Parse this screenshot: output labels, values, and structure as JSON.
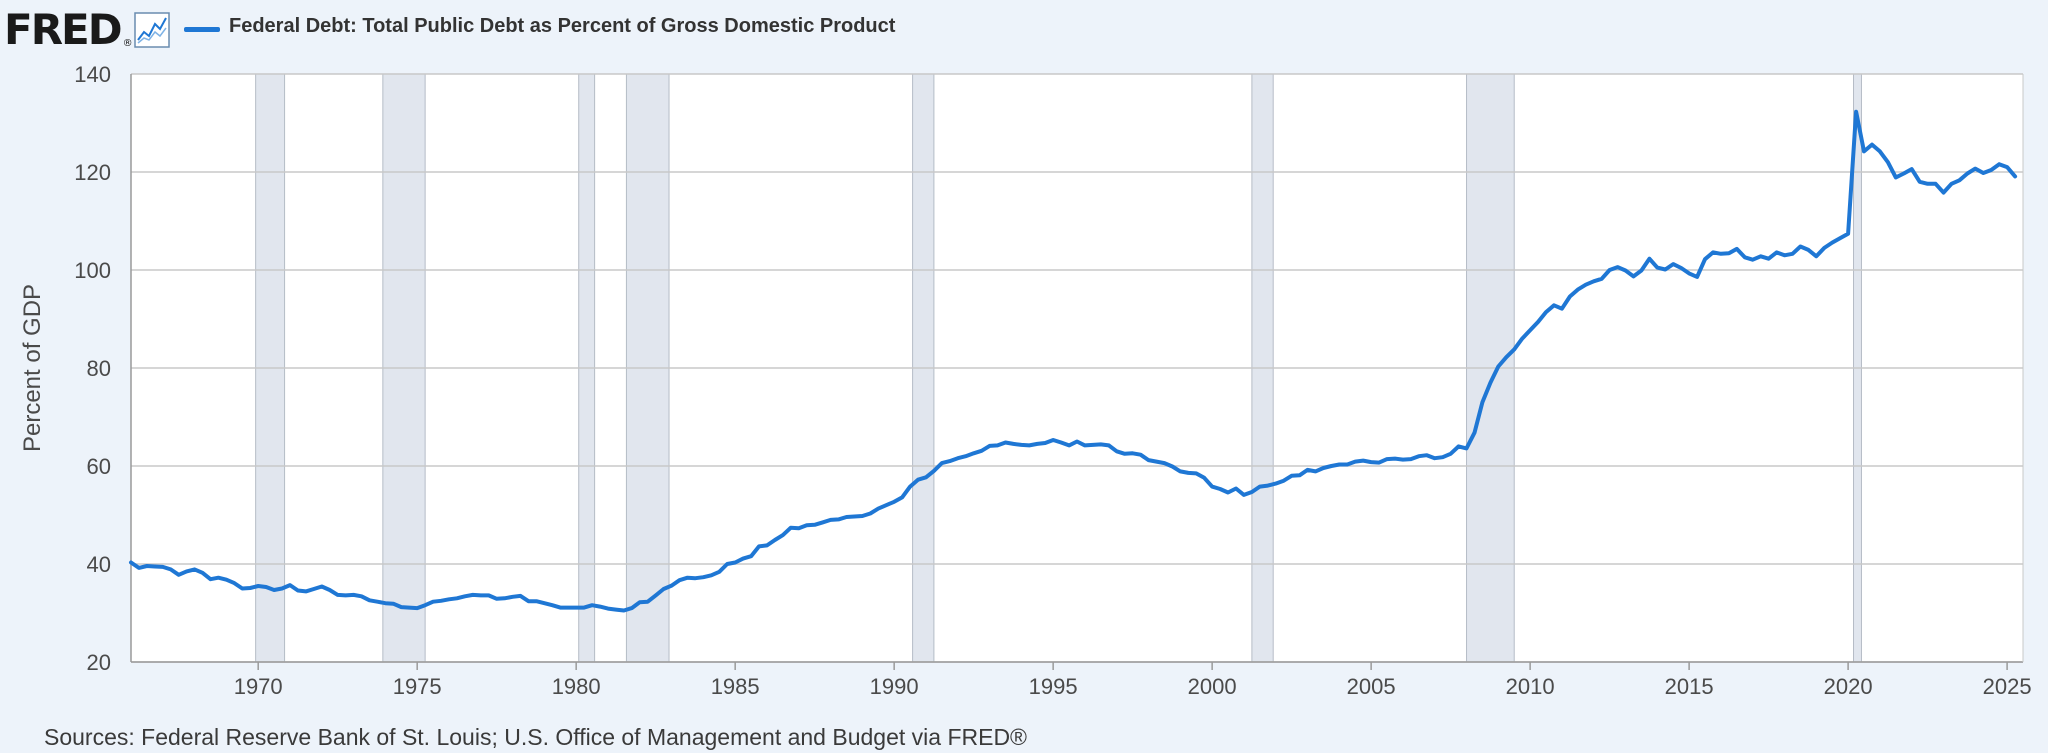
{
  "header": {
    "logo_text": "FRED",
    "logo_mark": "®",
    "graph_icon": "line-graph-icon",
    "series_title": "Federal Debt: Total Public Debt as Percent of Gross Domestic Product"
  },
  "sources": "Sources: Federal Reserve Bank of St. Louis; U.S. Office of Management and Budget via FRED®",
  "colors": {
    "background": "#edf3fa",
    "line": "#1f77d4",
    "recession": "#e1e6ee",
    "grid": "#c8c8c8"
  },
  "chart_data": {
    "type": "line",
    "title": "Federal Debt: Total Public Debt as Percent of Gross Domestic Product",
    "xlabel": "",
    "ylabel": "Percent of GDP",
    "xlim": [
      1966.0,
      2025.5
    ],
    "ylim": [
      20,
      140
    ],
    "yticks": [
      20,
      40,
      60,
      80,
      100,
      120,
      140
    ],
    "xticks": [
      1970,
      1975,
      1980,
      1985,
      1990,
      1995,
      2000,
      2005,
      2010,
      2015,
      2020,
      2025
    ],
    "grid": true,
    "legend": "top-left",
    "recessions": [
      [
        1969.92,
        1970.83
      ],
      [
        1973.92,
        1975.25
      ],
      [
        1980.08,
        1980.58
      ],
      [
        1981.58,
        1982.92
      ],
      [
        1990.58,
        1991.25
      ],
      [
        2001.25,
        2001.92
      ],
      [
        2008.0,
        2009.5
      ],
      [
        2020.17,
        2020.42
      ]
    ],
    "series": [
      {
        "name": "Federal Debt: Total Public Debt as Percent of Gross Domestic Product",
        "points": [
          [
            1966.0,
            40.3
          ],
          [
            1966.25,
            39.2
          ],
          [
            1966.5,
            39.6
          ],
          [
            1966.75,
            39.5
          ],
          [
            1967.0,
            39.4
          ],
          [
            1967.25,
            38.9
          ],
          [
            1967.5,
            37.8
          ],
          [
            1967.75,
            38.5
          ],
          [
            1968.0,
            38.9
          ],
          [
            1968.25,
            38.2
          ],
          [
            1968.5,
            36.9
          ],
          [
            1968.75,
            37.2
          ],
          [
            1969.0,
            36.8
          ],
          [
            1969.25,
            36.1
          ],
          [
            1969.5,
            35.0
          ],
          [
            1969.75,
            35.1
          ],
          [
            1970.0,
            35.5
          ],
          [
            1970.25,
            35.3
          ],
          [
            1970.5,
            34.7
          ],
          [
            1970.75,
            35.0
          ],
          [
            1971.0,
            35.7
          ],
          [
            1971.25,
            34.6
          ],
          [
            1971.5,
            34.4
          ],
          [
            1971.75,
            34.9
          ],
          [
            1972.0,
            35.4
          ],
          [
            1972.25,
            34.7
          ],
          [
            1972.5,
            33.7
          ],
          [
            1972.75,
            33.6
          ],
          [
            1973.0,
            33.7
          ],
          [
            1973.25,
            33.4
          ],
          [
            1973.5,
            32.6
          ],
          [
            1973.75,
            32.3
          ],
          [
            1974.0,
            32.0
          ],
          [
            1974.25,
            31.9
          ],
          [
            1974.5,
            31.2
          ],
          [
            1974.75,
            31.1
          ],
          [
            1975.0,
            31.0
          ],
          [
            1975.25,
            31.6
          ],
          [
            1975.5,
            32.3
          ],
          [
            1975.75,
            32.5
          ],
          [
            1976.0,
            32.8
          ],
          [
            1976.25,
            33.0
          ],
          [
            1976.5,
            33.4
          ],
          [
            1976.75,
            33.7
          ],
          [
            1977.0,
            33.6
          ],
          [
            1977.25,
            33.6
          ],
          [
            1977.5,
            32.9
          ],
          [
            1977.75,
            33.0
          ],
          [
            1978.0,
            33.3
          ],
          [
            1978.25,
            33.5
          ],
          [
            1978.5,
            32.4
          ],
          [
            1978.75,
            32.4
          ],
          [
            1979.0,
            32.0
          ],
          [
            1979.25,
            31.6
          ],
          [
            1979.5,
            31.1
          ],
          [
            1979.75,
            31.1
          ],
          [
            1980.0,
            31.1
          ],
          [
            1980.25,
            31.1
          ],
          [
            1980.5,
            31.6
          ],
          [
            1980.75,
            31.3
          ],
          [
            1981.0,
            30.9
          ],
          [
            1981.25,
            30.7
          ],
          [
            1981.5,
            30.5
          ],
          [
            1981.75,
            31.0
          ],
          [
            1982.0,
            32.2
          ],
          [
            1982.25,
            32.3
          ],
          [
            1982.5,
            33.6
          ],
          [
            1982.75,
            34.9
          ],
          [
            1983.0,
            35.6
          ],
          [
            1983.25,
            36.7
          ],
          [
            1983.5,
            37.2
          ],
          [
            1983.75,
            37.1
          ],
          [
            1984.0,
            37.3
          ],
          [
            1984.25,
            37.7
          ],
          [
            1984.5,
            38.4
          ],
          [
            1984.75,
            40.0
          ],
          [
            1985.0,
            40.3
          ],
          [
            1985.25,
            41.1
          ],
          [
            1985.5,
            41.6
          ],
          [
            1985.75,
            43.6
          ],
          [
            1986.0,
            43.8
          ],
          [
            1986.25,
            44.9
          ],
          [
            1986.5,
            45.9
          ],
          [
            1986.75,
            47.4
          ],
          [
            1987.0,
            47.3
          ],
          [
            1987.25,
            47.9
          ],
          [
            1987.5,
            48.0
          ],
          [
            1987.75,
            48.5
          ],
          [
            1988.0,
            49.0
          ],
          [
            1988.25,
            49.1
          ],
          [
            1988.5,
            49.6
          ],
          [
            1988.75,
            49.7
          ],
          [
            1989.0,
            49.8
          ],
          [
            1989.25,
            50.3
          ],
          [
            1989.5,
            51.3
          ],
          [
            1989.75,
            52.0
          ],
          [
            1990.0,
            52.7
          ],
          [
            1990.25,
            53.6
          ],
          [
            1990.5,
            55.8
          ],
          [
            1990.75,
            57.2
          ],
          [
            1991.0,
            57.7
          ],
          [
            1991.25,
            59.0
          ],
          [
            1991.5,
            60.6
          ],
          [
            1991.75,
            61.0
          ],
          [
            1992.0,
            61.6
          ],
          [
            1992.25,
            62.0
          ],
          [
            1992.5,
            62.6
          ],
          [
            1992.75,
            63.1
          ],
          [
            1993.0,
            64.1
          ],
          [
            1993.25,
            64.2
          ],
          [
            1993.5,
            64.8
          ],
          [
            1993.75,
            64.5
          ],
          [
            1994.0,
            64.3
          ],
          [
            1994.25,
            64.2
          ],
          [
            1994.5,
            64.5
          ],
          [
            1994.75,
            64.7
          ],
          [
            1995.0,
            65.3
          ],
          [
            1995.25,
            64.8
          ],
          [
            1995.5,
            64.2
          ],
          [
            1995.75,
            65.0
          ],
          [
            1996.0,
            64.2
          ],
          [
            1996.25,
            64.3
          ],
          [
            1996.5,
            64.4
          ],
          [
            1996.75,
            64.2
          ],
          [
            1997.0,
            63.0
          ],
          [
            1997.25,
            62.5
          ],
          [
            1997.5,
            62.6
          ],
          [
            1997.75,
            62.3
          ],
          [
            1998.0,
            61.2
          ],
          [
            1998.25,
            60.9
          ],
          [
            1998.5,
            60.6
          ],
          [
            1998.75,
            59.9
          ],
          [
            1999.0,
            58.9
          ],
          [
            1999.25,
            58.6
          ],
          [
            1999.5,
            58.5
          ],
          [
            1999.75,
            57.6
          ],
          [
            2000.0,
            55.8
          ],
          [
            2000.25,
            55.3
          ],
          [
            2000.5,
            54.6
          ],
          [
            2000.75,
            55.4
          ],
          [
            2001.0,
            54.1
          ],
          [
            2001.25,
            54.7
          ],
          [
            2001.5,
            55.8
          ],
          [
            2001.75,
            56.0
          ],
          [
            2002.0,
            56.4
          ],
          [
            2002.25,
            57.0
          ],
          [
            2002.5,
            58.0
          ],
          [
            2002.75,
            58.1
          ],
          [
            2003.0,
            59.2
          ],
          [
            2003.25,
            58.9
          ],
          [
            2003.5,
            59.6
          ],
          [
            2003.75,
            60.0
          ],
          [
            2004.0,
            60.3
          ],
          [
            2004.25,
            60.3
          ],
          [
            2004.5,
            60.9
          ],
          [
            2004.75,
            61.1
          ],
          [
            2005.0,
            60.8
          ],
          [
            2005.25,
            60.7
          ],
          [
            2005.5,
            61.4
          ],
          [
            2005.75,
            61.5
          ],
          [
            2006.0,
            61.3
          ],
          [
            2006.25,
            61.4
          ],
          [
            2006.5,
            62.0
          ],
          [
            2006.75,
            62.2
          ],
          [
            2007.0,
            61.6
          ],
          [
            2007.25,
            61.8
          ],
          [
            2007.5,
            62.5
          ],
          [
            2007.75,
            64.0
          ],
          [
            2008.0,
            63.6
          ],
          [
            2008.25,
            66.8
          ],
          [
            2008.5,
            73.0
          ],
          [
            2008.75,
            77.0
          ],
          [
            2009.0,
            80.3
          ],
          [
            2009.25,
            82.2
          ],
          [
            2009.5,
            83.8
          ],
          [
            2009.75,
            86.0
          ],
          [
            2010.0,
            87.7
          ],
          [
            2010.25,
            89.4
          ],
          [
            2010.5,
            91.4
          ],
          [
            2010.75,
            92.8
          ],
          [
            2011.0,
            92.1
          ],
          [
            2011.25,
            94.6
          ],
          [
            2011.5,
            96.0
          ],
          [
            2011.75,
            97.0
          ],
          [
            2012.0,
            97.7
          ],
          [
            2012.25,
            98.2
          ],
          [
            2012.5,
            100.0
          ],
          [
            2012.75,
            100.6
          ],
          [
            2013.0,
            99.9
          ],
          [
            2013.25,
            98.7
          ],
          [
            2013.5,
            99.9
          ],
          [
            2013.75,
            102.3
          ],
          [
            2014.0,
            100.5
          ],
          [
            2014.25,
            100.1
          ],
          [
            2014.5,
            101.2
          ],
          [
            2014.75,
            100.4
          ],
          [
            2015.0,
            99.3
          ],
          [
            2015.25,
            98.6
          ],
          [
            2015.5,
            102.2
          ],
          [
            2015.75,
            103.6
          ],
          [
            2016.0,
            103.3
          ],
          [
            2016.25,
            103.4
          ],
          [
            2016.5,
            104.3
          ],
          [
            2016.75,
            102.6
          ],
          [
            2017.0,
            102.1
          ],
          [
            2017.25,
            102.8
          ],
          [
            2017.5,
            102.3
          ],
          [
            2017.75,
            103.6
          ],
          [
            2018.0,
            103.0
          ],
          [
            2018.25,
            103.3
          ],
          [
            2018.5,
            104.8
          ],
          [
            2018.75,
            104.1
          ],
          [
            2019.0,
            102.8
          ],
          [
            2019.25,
            104.5
          ],
          [
            2019.5,
            105.6
          ],
          [
            2019.75,
            106.5
          ],
          [
            2020.0,
            107.4
          ],
          [
            2020.25,
            132.3
          ],
          [
            2020.5,
            124.2
          ],
          [
            2020.75,
            125.6
          ],
          [
            2021.0,
            124.2
          ],
          [
            2021.25,
            122.0
          ],
          [
            2021.5,
            118.9
          ],
          [
            2021.75,
            119.7
          ],
          [
            2022.0,
            120.6
          ],
          [
            2022.25,
            118.0
          ],
          [
            2022.5,
            117.6
          ],
          [
            2022.75,
            117.6
          ],
          [
            2023.0,
            115.8
          ],
          [
            2023.25,
            117.6
          ],
          [
            2023.5,
            118.3
          ],
          [
            2023.75,
            119.7
          ],
          [
            2024.0,
            120.7
          ],
          [
            2024.25,
            119.8
          ],
          [
            2024.5,
            120.4
          ],
          [
            2024.75,
            121.6
          ],
          [
            2025.0,
            121.0
          ],
          [
            2025.25,
            119.1
          ]
        ]
      }
    ]
  }
}
